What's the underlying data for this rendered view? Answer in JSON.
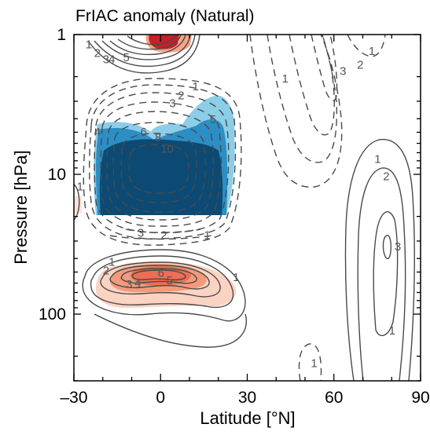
{
  "chart_data": {
    "type": "contour",
    "title": "FrIAC anomaly (Natural)",
    "xlabel": "Latitude [°N]",
    "ylabel": "Pressure [hPa]",
    "xlim": [
      -30,
      90
    ],
    "ylim": [
      1,
      300
    ],
    "y_scale": "log",
    "y_inverted": true,
    "xticks": [
      -30,
      0,
      30,
      60,
      90
    ],
    "xtick_labels": [
      "–30",
      "0",
      "30",
      "60",
      "90"
    ],
    "yticks": [
      1,
      10,
      100
    ],
    "ytick_labels": [
      "1",
      "10",
      "100"
    ],
    "colors": {
      "negative_strong": "#0c4a74",
      "negative_mid": "#1d84bd",
      "negative_light": "#8ccde8",
      "positive_light": "#fbd3c2",
      "positive_mid": "#f28466",
      "positive_strong": "#c4202a",
      "contour_line": "#4a4a4a"
    },
    "contour_labels": [
      {
        "text": "1",
        "lat": -26,
        "p": 1.25
      },
      {
        "text": "2",
        "lat": -23,
        "p": 1.45
      },
      {
        "text": "3",
        "lat": -20,
        "p": 1.6
      },
      {
        "text": "4",
        "lat": -18,
        "p": 1.6
      },
      {
        "text": "5",
        "lat": -13,
        "p": 1.55
      },
      {
        "text": "1",
        "lat": 11,
        "p": 2.5
      },
      {
        "text": "2",
        "lat": 6,
        "p": 2.9
      },
      {
        "text": "3",
        "lat": 3,
        "p": 3.3
      },
      {
        "text": "5",
        "lat": 17,
        "p": 4.3
      },
      {
        "text": "4",
        "lat": -23,
        "p": 5.3
      },
      {
        "text": "6",
        "lat": -7,
        "p": 5.3
      },
      {
        "text": "8",
        "lat": -2,
        "p": 5.8
      },
      {
        "text": "10",
        "lat": 0,
        "p": 7.0
      },
      {
        "text": "3",
        "lat": -8,
        "p": 28
      },
      {
        "text": "2",
        "lat": 0,
        "p": 29
      },
      {
        "text": "1",
        "lat": 15,
        "p": 29
      },
      {
        "text": "1",
        "lat": -29,
        "p": 13
      },
      {
        "text": "1",
        "lat": -18,
        "p": 45
      },
      {
        "text": "2",
        "lat": -20,
        "p": 52
      },
      {
        "text": "3",
        "lat": -12,
        "p": 65
      },
      {
        "text": "4",
        "lat": -9,
        "p": 64
      },
      {
        "text": "5",
        "lat": 2,
        "p": 61
      },
      {
        "text": "6",
        "lat": -1,
        "p": 54
      },
      {
        "text": "1",
        "lat": 25,
        "p": 58
      },
      {
        "text": "3",
        "lat": 62,
        "p": 1.95
      },
      {
        "text": "2",
        "lat": 68,
        "p": 1.75
      },
      {
        "text": "1",
        "lat": 72,
        "p": 1.4
      },
      {
        "text": "1",
        "lat": 42,
        "p": 2.2
      },
      {
        "text": "1",
        "lat": 74,
        "p": 8.3
      },
      {
        "text": "2",
        "lat": 77,
        "p": 11
      },
      {
        "text": "3",
        "lat": 81,
        "p": 35
      },
      {
        "text": "1",
        "lat": 79,
        "p": 140
      },
      {
        "text": "1",
        "lat": 52,
        "p": 240
      }
    ]
  }
}
